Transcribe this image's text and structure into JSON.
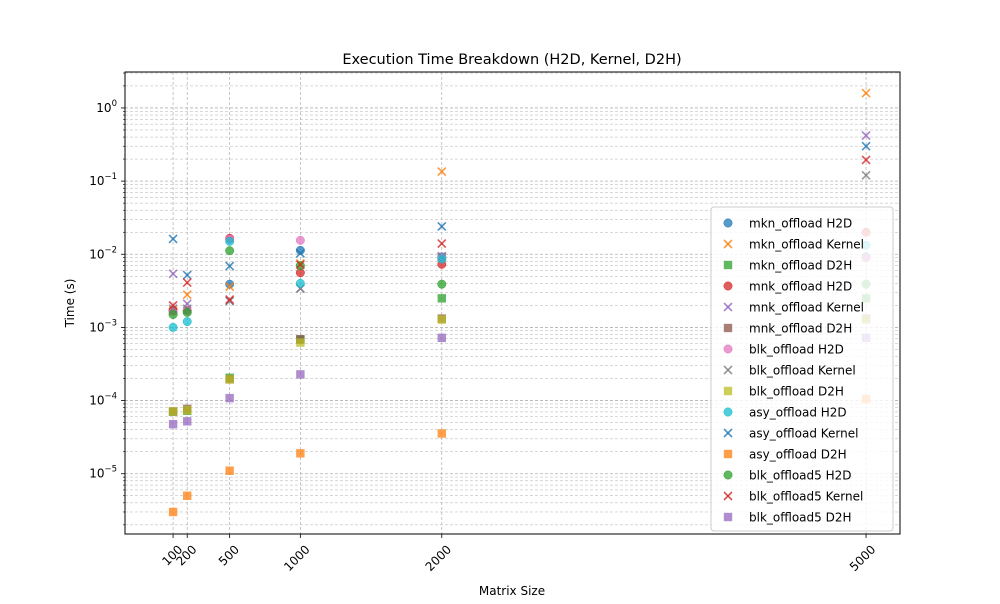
{
  "chart_data": {
    "type": "scatter",
    "title": "Execution Time Breakdown (H2D, Kernel, D2H)",
    "xlabel": "Matrix Size",
    "ylabel": "Time (s)",
    "x": [
      100,
      200,
      500,
      1000,
      2000,
      5000
    ],
    "x_tick_labels": [
      "100",
      "200",
      "500",
      "1000",
      "2000",
      "5000"
    ],
    "x_tick_rotation": -45,
    "xlim": [
      -240,
      5240
    ],
    "yscale": "log",
    "ylim": [
      1.5e-06,
      3.1
    ],
    "y_ticks": [
      {
        "value": 1e-05,
        "base": "10",
        "exp": "−5"
      },
      {
        "value": 0.0001,
        "base": "10",
        "exp": "−4"
      },
      {
        "value": 0.001,
        "base": "10",
        "exp": "−3"
      },
      {
        "value": 0.01,
        "base": "10",
        "exp": "−2"
      },
      {
        "value": 0.1,
        "base": "10",
        "exp": "−1"
      },
      {
        "value": 1,
        "base": "10",
        "exp": "0"
      }
    ],
    "grid": true,
    "legend_position": "right",
    "series": [
      {
        "name": "mkn_offload H2D",
        "marker": "circle",
        "color": "#1f77b4",
        "values": [
          0.0017,
          0.0017,
          0.0039,
          0.0113,
          0.0092,
          0.0092
        ]
      },
      {
        "name": "mkn_offload Kernel",
        "marker": "x",
        "color": "#ff7f0e",
        "values": [
          0.0017,
          0.0028,
          0.0036,
          0.0075,
          0.135,
          1.6
        ]
      },
      {
        "name": "mkn_offload D2H",
        "marker": "square",
        "color": "#2ca02c",
        "values": [
          7.05e-05,
          7.25e-05,
          0.000205,
          0.00068,
          0.0025,
          0.0025
        ]
      },
      {
        "name": "mnk_offload H2D",
        "marker": "circle",
        "color": "#d62728",
        "values": [
          0.0017,
          0.0017,
          0.0165,
          0.0056,
          0.0073,
          0.02
        ]
      },
      {
        "name": "mnk_offload Kernel",
        "marker": "x",
        "color": "#9467bd",
        "values": [
          0.0054,
          0.0021,
          0.0023,
          0.0034,
          0.0094,
          0.42
        ]
      },
      {
        "name": "mnk_offload D2H",
        "marker": "square",
        "color": "#8c564b",
        "values": [
          7.1e-05,
          7.7e-05,
          0.000195,
          0.00069,
          0.00132,
          0.00132
        ]
      },
      {
        "name": "blk_offload H2D",
        "marker": "circle",
        "color": "#e377c2",
        "values": [
          0.00165,
          0.0017,
          0.016,
          0.0155,
          0.0089,
          0.0089
        ]
      },
      {
        "name": "blk_offload Kernel",
        "marker": "x",
        "color": "#7f7f7f",
        "values": [
          0.0018,
          0.0018,
          0.0023,
          0.0034,
          0.0092,
          0.12
        ]
      },
      {
        "name": "blk_offload D2H",
        "marker": "square",
        "color": "#bcbd22",
        "values": [
          7.1e-05,
          7.4e-05,
          0.000195,
          0.00062,
          0.00128,
          0.00128
        ]
      },
      {
        "name": "asy_offload H2D",
        "marker": "circle",
        "color": "#17becf",
        "values": [
          0.001,
          0.0012,
          0.015,
          0.004,
          0.0086,
          0.0133
        ]
      },
      {
        "name": "asy_offload Kernel",
        "marker": "x",
        "color": "#1f77b4",
        "values": [
          0.0162,
          0.0052,
          0.0069,
          0.0103,
          0.024,
          0.3
        ]
      },
      {
        "name": "asy_offload D2H",
        "marker": "square",
        "color": "#ff7f0e",
        "values": [
          3e-06,
          5e-06,
          1.1e-05,
          1.9e-05,
          3.55e-05,
          0.000105
        ]
      },
      {
        "name": "blk_offload5 H2D",
        "marker": "circle",
        "color": "#2ca02c",
        "values": [
          0.0015,
          0.0016,
          0.0112,
          0.007,
          0.0039,
          0.0039
        ]
      },
      {
        "name": "blk_offload5 Kernel",
        "marker": "x",
        "color": "#d62728",
        "values": [
          0.002,
          0.0041,
          0.0024,
          0.0072,
          0.014,
          0.195
        ]
      },
      {
        "name": "blk_offload5 D2H",
        "marker": "square",
        "color": "#9467bd",
        "values": [
          4.75e-05,
          5.2e-05,
          0.000108,
          0.000228,
          0.00072,
          0.00072
        ]
      }
    ]
  }
}
